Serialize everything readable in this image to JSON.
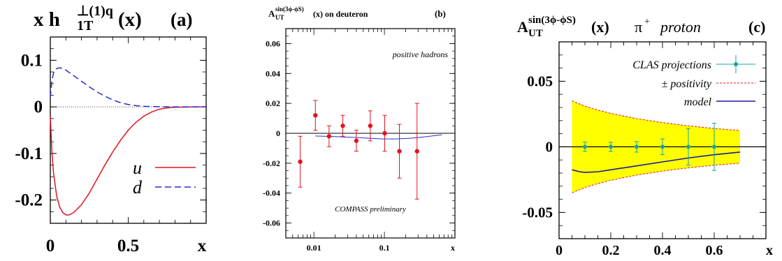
{
  "chart_data": [
    {
      "type": "line",
      "panel_label": "(a)",
      "title_parts": {
        "main": "x h",
        "sup": "⊥(1)q",
        "sub": "1T",
        "arg": "(x)"
      },
      "xlabel": "x",
      "xlim": [
        0,
        1.0
      ],
      "ylim": [
        -0.25,
        0.15
      ],
      "xticks": [
        0,
        0.5
      ],
      "xtick_labels": [
        "0",
        "0.5"
      ],
      "yticks": [
        -0.2,
        -0.1,
        0,
        0.1
      ],
      "ytick_labels": [
        "-0.2",
        "-0.1",
        "0",
        "0.1"
      ],
      "legend_position": "bottom-right",
      "series": [
        {
          "name": "u",
          "color": "#e0141e",
          "dash": "solid",
          "x": [
            0.0,
            0.01,
            0.02,
            0.04,
            0.06,
            0.08,
            0.1,
            0.12,
            0.15,
            0.2,
            0.25,
            0.3,
            0.35,
            0.4,
            0.45,
            0.5,
            0.55,
            0.6,
            0.65,
            0.7,
            0.75,
            0.8,
            0.9,
            1.0
          ],
          "y": [
            -0.02,
            -0.095,
            -0.14,
            -0.19,
            -0.215,
            -0.227,
            -0.232,
            -0.232,
            -0.227,
            -0.21,
            -0.185,
            -0.155,
            -0.125,
            -0.097,
            -0.072,
            -0.05,
            -0.033,
            -0.02,
            -0.011,
            -0.005,
            -0.002,
            -0.0008,
            -0.0002,
            0.0
          ]
        },
        {
          "name": "d",
          "color": "#2a2ad6",
          "dash": "dashed",
          "x": [
            0.0,
            0.01,
            0.02,
            0.04,
            0.06,
            0.08,
            0.1,
            0.12,
            0.15,
            0.2,
            0.25,
            0.3,
            0.35,
            0.4,
            0.45,
            0.5,
            0.55,
            0.6,
            0.65,
            0.7,
            0.75,
            0.8,
            0.9,
            1.0
          ],
          "y": [
            0.02,
            0.055,
            0.072,
            0.082,
            0.084,
            0.082,
            0.079,
            0.074,
            0.067,
            0.055,
            0.043,
            0.032,
            0.023,
            0.015,
            0.009,
            0.005,
            0.0027,
            0.0013,
            0.0006,
            0.0003,
            0.0001,
            0.0,
            0.0,
            0.0
          ]
        }
      ],
      "reference_lines": [
        {
          "y": 0,
          "style": "dotted"
        }
      ]
    },
    {
      "type": "scatter",
      "panel_label": "(b)",
      "title_parts": {
        "main": "A",
        "sup": "sin(3ϕ-ϕS)",
        "sub": "UT",
        "arg": "(x)  on deuteron"
      },
      "xlabel": "x",
      "xscale": "log",
      "xlim": [
        0.004,
        1.0
      ],
      "ylim": [
        -0.07,
        0.07
      ],
      "xticks": [
        0.01,
        0.1
      ],
      "xtick_labels": [
        "0.01",
        "0.1"
      ],
      "yticks": [
        -0.06,
        -0.04,
        -0.02,
        0,
        0.02,
        0.04,
        0.06
      ],
      "ytick_labels": [
        "-0.06",
        "-0.04",
        "-0.02",
        "0",
        "0.02",
        "0.04",
        "0.06"
      ],
      "annotations": [
        "positive hadrons",
        "COMPASS preliminary"
      ],
      "points": {
        "color": "#e0141e",
        "x": [
          0.0064,
          0.0105,
          0.0164,
          0.0257,
          0.04,
          0.063,
          0.101,
          0.163,
          0.29
        ],
        "y": [
          -0.019,
          0.012,
          -0.002,
          0.005,
          -0.005,
          0.005,
          0.0,
          -0.012,
          -0.012
        ],
        "err": [
          0.017,
          0.01,
          0.007,
          0.007,
          0.007,
          0.01,
          0.012,
          0.018,
          0.032
        ]
      },
      "curve": {
        "color": "#2a2ad6",
        "x": [
          0.0105,
          0.02,
          0.04,
          0.07,
          0.1,
          0.15,
          0.25,
          0.4,
          0.65
        ],
        "y": [
          -0.0018,
          -0.0022,
          -0.0028,
          -0.0035,
          -0.0038,
          -0.0038,
          -0.0032,
          -0.0022,
          -0.001
        ]
      },
      "reference_lines": [
        {
          "y": 0,
          "style": "solid"
        }
      ]
    },
    {
      "type": "scatter",
      "panel_label": "(c)",
      "title_parts": {
        "main": "A",
        "sup": "sin(3ϕ-ϕS)",
        "sub": "UT",
        "arg": "(x)",
        "extra_sym": "π",
        "extra_sup": "+",
        "extra_word": "proton"
      },
      "xlabel": "x",
      "xlim": [
        0,
        0.8
      ],
      "ylim": [
        -0.07,
        0.08
      ],
      "xticks": [
        0,
        0.2,
        0.4,
        0.6
      ],
      "xtick_labels": [
        "0",
        "0.2",
        "0.4",
        "0.6"
      ],
      "yticks": [
        -0.05,
        0,
        0.05
      ],
      "ytick_labels": [
        "-0.05",
        "0",
        "0.05"
      ],
      "legend_position": "top-right",
      "legend": [
        "CLAS projections",
        "± positivity",
        "model"
      ],
      "band": {
        "fill": "#ffff00",
        "edge": "#e0141e",
        "x": [
          0.05,
          0.1,
          0.15,
          0.2,
          0.25,
          0.3,
          0.35,
          0.4,
          0.45,
          0.5,
          0.55,
          0.6,
          0.65,
          0.7
        ],
        "upper": [
          0.035,
          0.031,
          0.028,
          0.0255,
          0.0235,
          0.0215,
          0.02,
          0.0185,
          0.0172,
          0.016,
          0.015,
          0.014,
          0.0132,
          0.0125
        ],
        "lower": [
          -0.035,
          -0.031,
          -0.028,
          -0.0255,
          -0.0235,
          -0.0215,
          -0.02,
          -0.0185,
          -0.0172,
          -0.016,
          -0.015,
          -0.014,
          -0.0132,
          -0.0125
        ]
      },
      "points": {
        "color": "#1aa3a3",
        "x": [
          0.1,
          0.2,
          0.3,
          0.4,
          0.5,
          0.6
        ],
        "y": [
          0.0,
          0.0,
          0.0,
          0.0,
          0.0,
          0.0
        ],
        "err": [
          0.0035,
          0.0035,
          0.004,
          0.006,
          0.014,
          0.018
        ],
        "xerr": [
          0.01,
          0.01,
          0.01,
          0.01,
          0.01,
          0.01
        ]
      },
      "curve": {
        "color": "#1a1aa0",
        "x": [
          0.05,
          0.08,
          0.1,
          0.15,
          0.2,
          0.3,
          0.4,
          0.5,
          0.6,
          0.7
        ],
        "y": [
          -0.0175,
          -0.019,
          -0.0195,
          -0.019,
          -0.0175,
          -0.0145,
          -0.0115,
          -0.0085,
          -0.006,
          -0.004
        ]
      },
      "reference_lines": [
        {
          "y": 0,
          "style": "solid"
        }
      ]
    }
  ]
}
